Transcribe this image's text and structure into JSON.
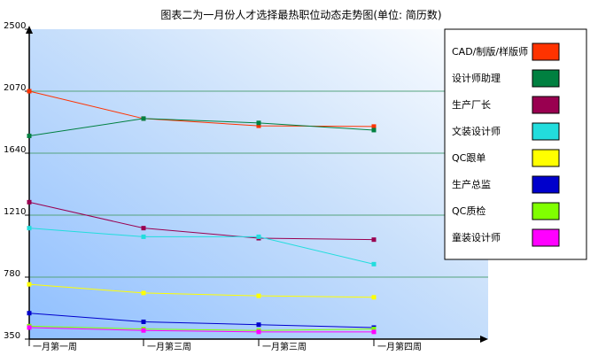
{
  "chart_data": {
    "type": "line",
    "title": "图表二为一月份人才选择最热职位动态走势图(单位: 简历数)",
    "categories": [
      "一月第一周",
      "一月第三周",
      "一月第三周",
      "一月第四周"
    ],
    "ylim": [
      350,
      2500
    ],
    "yticks": [
      "2500",
      "2070",
      "1640",
      "1210",
      "780",
      "350"
    ],
    "grid": true,
    "legend_position": "right",
    "series": [
      {
        "name": "CAD/制版/样版师",
        "color": "#ff3300",
        "values": [
          2070,
          1880,
          1830,
          1825
        ]
      },
      {
        "name": "设计师助理",
        "color": "#008040",
        "values": [
          1760,
          1880,
          1850,
          1800
        ]
      },
      {
        "name": "生产厂长",
        "color": "#990050",
        "values": [
          1300,
          1120,
          1050,
          1040
        ]
      },
      {
        "name": "文装设计师",
        "color": "#22dddd",
        "values": [
          1120,
          1060,
          1060,
          870
        ]
      },
      {
        "name": "QC跟单",
        "color": "#ffff00",
        "values": [
          730,
          670,
          650,
          640
        ]
      },
      {
        "name": "生产总监",
        "color": "#0000cc",
        "values": [
          530,
          470,
          450,
          430
        ]
      },
      {
        "name": "QC质检",
        "color": "#80ff00",
        "values": [
          440,
          420,
          410,
          420
        ]
      },
      {
        "name": "童装设计师",
        "color": "#ff00ff",
        "values": [
          430,
          410,
          400,
          400
        ]
      }
    ]
  }
}
